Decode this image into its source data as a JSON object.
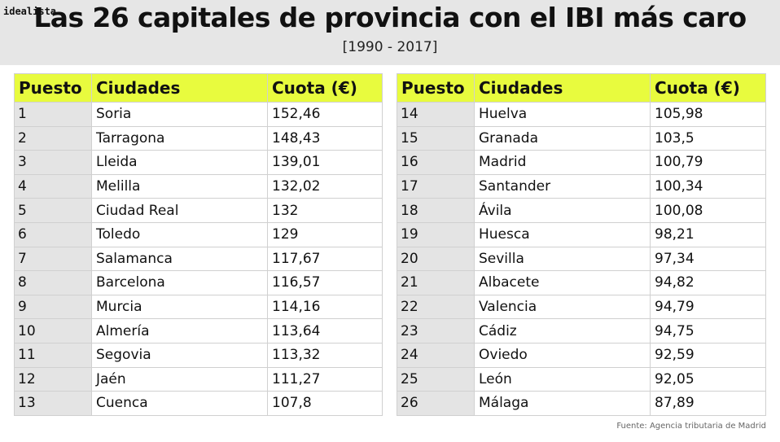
{
  "brand": "idealista",
  "title": "Las 26 capitales de provincia con el IBI más caro",
  "subtitle": "[1990 - 2017]",
  "headers": {
    "puesto": "Puesto",
    "ciudades": "Ciudades",
    "cuota": "Cuota (€)"
  },
  "left_rows": [
    {
      "puesto": "1",
      "ciudad": "Soria",
      "cuota": "152,46"
    },
    {
      "puesto": "2",
      "ciudad": "Tarragona",
      "cuota": "148,43"
    },
    {
      "puesto": "3",
      "ciudad": "Lleida",
      "cuota": "139,01"
    },
    {
      "puesto": "4",
      "ciudad": "Melilla",
      "cuota": "132,02"
    },
    {
      "puesto": "5",
      "ciudad": "Ciudad Real",
      "cuota": "132"
    },
    {
      "puesto": "6",
      "ciudad": "Toledo",
      "cuota": "129"
    },
    {
      "puesto": "7",
      "ciudad": "Salamanca",
      "cuota": "117,67"
    },
    {
      "puesto": "8",
      "ciudad": "Barcelona",
      "cuota": "116,57"
    },
    {
      "puesto": "9",
      "ciudad": "Murcia",
      "cuota": "114,16"
    },
    {
      "puesto": "10",
      "ciudad": "Almería",
      "cuota": "113,64"
    },
    {
      "puesto": "11",
      "ciudad": "Segovia",
      "cuota": "113,32"
    },
    {
      "puesto": "12",
      "ciudad": "Jaén",
      "cuota": "111,27"
    },
    {
      "puesto": "13",
      "ciudad": "Cuenca",
      "cuota": "107,8"
    }
  ],
  "right_rows": [
    {
      "puesto": "14",
      "ciudad": "Huelva",
      "cuota": "105,98"
    },
    {
      "puesto": "15",
      "ciudad": "Granada",
      "cuota": "103,5"
    },
    {
      "puesto": "16",
      "ciudad": "Madrid",
      "cuota": "100,79"
    },
    {
      "puesto": "17",
      "ciudad": "Santander",
      "cuota": "100,34"
    },
    {
      "puesto": "18",
      "ciudad": "Ávila",
      "cuota": "100,08"
    },
    {
      "puesto": "19",
      "ciudad": "Huesca",
      "cuota": "98,21"
    },
    {
      "puesto": "20",
      "ciudad": "Sevilla",
      "cuota": "97,34"
    },
    {
      "puesto": "21",
      "ciudad": "Albacete",
      "cuota": "94,82"
    },
    {
      "puesto": "22",
      "ciudad": "Valencia",
      "cuota": "94,79"
    },
    {
      "puesto": "23",
      "ciudad": "Cádiz",
      "cuota": "94,75"
    },
    {
      "puesto": "24",
      "ciudad": "Oviedo",
      "cuota": "92,59"
    },
    {
      "puesto": "25",
      "ciudad": "León",
      "cuota": "92,05"
    },
    {
      "puesto": "26",
      "ciudad": "Málaga",
      "cuota": "87,89"
    }
  ],
  "source": "Fuente: Agencia tributaria de Madrid",
  "colors": {
    "header_fill": "#e8fb3e",
    "title_band": "#e6e6e6",
    "rank_cell": "#e4e4e4"
  }
}
